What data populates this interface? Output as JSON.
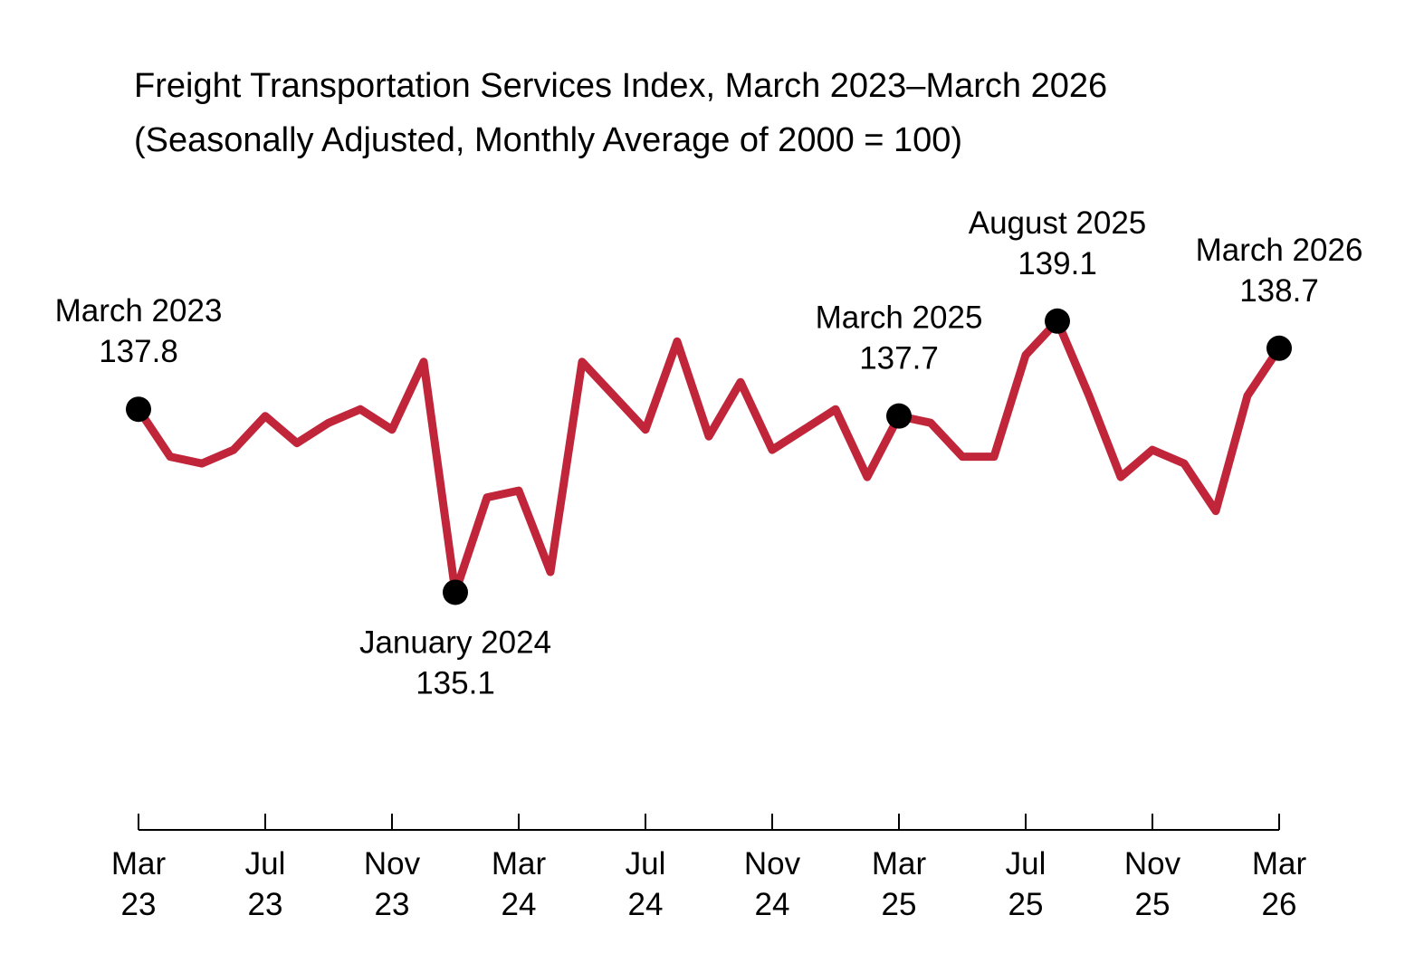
{
  "chart_data": {
    "type": "line",
    "title": "Freight Transportation Services Index, March 2023–March 2026",
    "subtitle": "(Seasonally Adjusted, Monthly Average of 2000 = 100)",
    "xlabel": "",
    "ylabel": "",
    "grid": false,
    "line_color": "#c0253a",
    "marker_color": "#000000",
    "x": [
      "2023-03",
      "2023-04",
      "2023-05",
      "2023-06",
      "2023-07",
      "2023-08",
      "2023-09",
      "2023-10",
      "2023-11",
      "2023-12",
      "2024-01",
      "2024-02",
      "2024-03",
      "2024-04",
      "2024-05",
      "2024-06",
      "2024-07",
      "2024-08",
      "2024-09",
      "2024-10",
      "2024-11",
      "2024-12",
      "2025-01",
      "2025-02",
      "2025-03",
      "2025-04",
      "2025-05",
      "2025-06",
      "2025-07",
      "2025-08",
      "2025-09",
      "2025-10",
      "2025-11",
      "2025-12",
      "2026-01",
      "2026-02",
      "2026-03"
    ],
    "series": [
      {
        "values": [
          137.8,
          137.1,
          137.0,
          137.2,
          137.7,
          137.3,
          137.6,
          137.8,
          137.5,
          138.5,
          135.1,
          136.5,
          136.6,
          135.4,
          138.5,
          138.0,
          137.5,
          138.8,
          137.4,
          138.2,
          137.2,
          137.5,
          137.8,
          136.8,
          137.7,
          137.6,
          137.1,
          137.1,
          138.6,
          139.1,
          138.0,
          136.8,
          137.2,
          137.0,
          136.3,
          138.0,
          138.7
        ]
      }
    ],
    "ylim": [
      129.5,
      141.5
    ],
    "x_ticks": [
      {
        "x": "2023-03",
        "line1": "Mar",
        "line2": "23"
      },
      {
        "x": "2023-07",
        "line1": "Jul",
        "line2": "23"
      },
      {
        "x": "2023-11",
        "line1": "Nov",
        "line2": "23"
      },
      {
        "x": "2024-03",
        "line1": "Mar",
        "line2": "24"
      },
      {
        "x": "2024-07",
        "line1": "Jul",
        "line2": "24"
      },
      {
        "x": "2024-11",
        "line1": "Nov",
        "line2": "24"
      },
      {
        "x": "2025-03",
        "line1": "Mar",
        "line2": "25"
      },
      {
        "x": "2025-07",
        "line1": "Jul",
        "line2": "25"
      },
      {
        "x": "2025-11",
        "line1": "Nov",
        "line2": "25"
      },
      {
        "x": "2026-03",
        "line1": "Mar",
        "line2": "26"
      }
    ],
    "annotations": [
      {
        "x": "2023-03",
        "label": "March 2023",
        "value": "137.8",
        "position": "above"
      },
      {
        "x": "2024-01",
        "label": "January 2024",
        "value": "135.1",
        "position": "below"
      },
      {
        "x": "2025-03",
        "label": "March 2025",
        "value": "137.7",
        "position": "above"
      },
      {
        "x": "2025-08",
        "label": "August 2025",
        "value": "139.1",
        "position": "above"
      },
      {
        "x": "2026-03",
        "label": "March 2026",
        "value": "138.7",
        "position": "above"
      }
    ]
  }
}
